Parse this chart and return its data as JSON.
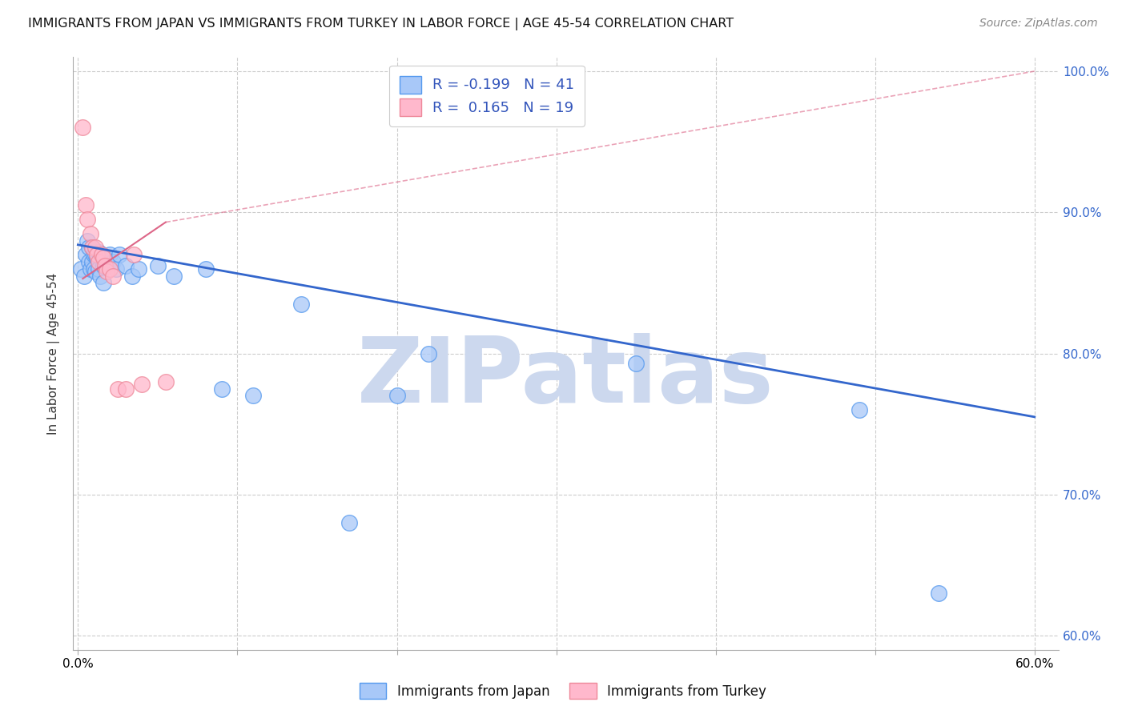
{
  "title": "IMMIGRANTS FROM JAPAN VS IMMIGRANTS FROM TURKEY IN LABOR FORCE | AGE 45-54 CORRELATION CHART",
  "source": "Source: ZipAtlas.com",
  "ylabel": "In Labor Force | Age 45-54",
  "xlim": [
    -0.003,
    0.615
  ],
  "ylim": [
    0.59,
    1.01
  ],
  "xticks": [
    0.0,
    0.1,
    0.2,
    0.3,
    0.4,
    0.5,
    0.6
  ],
  "xtick_labels": [
    "0.0%",
    "",
    "",
    "",
    "",
    "",
    "60.0%"
  ],
  "yticks_right": [
    0.6,
    0.7,
    0.8,
    0.9,
    1.0
  ],
  "ytick_labels_right": [
    "60.0%",
    "70.0%",
    "80.0%",
    "90.0%",
    "100.0%"
  ],
  "R_japan": -0.199,
  "N_japan": 41,
  "R_turkey": 0.165,
  "N_turkey": 19,
  "japan_color": "#a8c8f8",
  "japan_edge": "#5599ee",
  "turkey_color": "#ffb8cc",
  "turkey_edge": "#ee8899",
  "japan_trend_color": "#3366cc",
  "turkey_trend_color": "#dd6688",
  "watermark": "ZIPatlas",
  "watermark_color": "#ccd8ee",
  "legend_japan": "Immigrants from Japan",
  "legend_turkey": "Immigrants from Turkey",
  "background_color": "#ffffff",
  "grid_color": "#cccccc",
  "japan_points_x": [
    0.002,
    0.004,
    0.005,
    0.006,
    0.007,
    0.007,
    0.008,
    0.009,
    0.009,
    0.01,
    0.01,
    0.011,
    0.011,
    0.012,
    0.013,
    0.013,
    0.014,
    0.015,
    0.016,
    0.016,
    0.017,
    0.018,
    0.02,
    0.022,
    0.024,
    0.026,
    0.03,
    0.034,
    0.038,
    0.05,
    0.06,
    0.08,
    0.09,
    0.11,
    0.14,
    0.17,
    0.2,
    0.22,
    0.35,
    0.49,
    0.54
  ],
  "japan_points_y": [
    0.86,
    0.855,
    0.87,
    0.88,
    0.875,
    0.865,
    0.86,
    0.875,
    0.865,
    0.87,
    0.86,
    0.87,
    0.858,
    0.868,
    0.872,
    0.86,
    0.855,
    0.87,
    0.862,
    0.85,
    0.868,
    0.862,
    0.87,
    0.865,
    0.86,
    0.87,
    0.862,
    0.855,
    0.86,
    0.862,
    0.855,
    0.86,
    0.775,
    0.77,
    0.835,
    0.68,
    0.77,
    0.8,
    0.793,
    0.76,
    0.63
  ],
  "turkey_points_x": [
    0.003,
    0.005,
    0.006,
    0.008,
    0.009,
    0.011,
    0.012,
    0.013,
    0.015,
    0.016,
    0.017,
    0.018,
    0.02,
    0.022,
    0.025,
    0.03,
    0.035,
    0.04,
    0.055
  ],
  "turkey_points_y": [
    0.96,
    0.905,
    0.895,
    0.885,
    0.875,
    0.875,
    0.87,
    0.865,
    0.87,
    0.868,
    0.862,
    0.858,
    0.86,
    0.855,
    0.775,
    0.775,
    0.87,
    0.778,
    0.78
  ],
  "japan_trend_x0": 0.0,
  "japan_trend_x1": 0.6,
  "japan_trend_y0": 0.877,
  "japan_trend_y1": 0.755,
  "turkey_trend_x0": 0.003,
  "turkey_trend_x1": 0.055,
  "turkey_trend_y0": 0.853,
  "turkey_trend_y1": 0.893,
  "turkey_trend_dashed_x0": 0.055,
  "turkey_trend_dashed_x1": 0.6,
  "turkey_trend_dashed_y0": 0.893,
  "turkey_trend_dashed_y1": 1.0
}
